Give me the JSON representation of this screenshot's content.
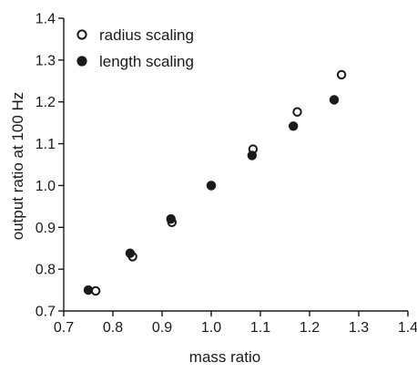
{
  "chart_data": {
    "type": "scatter",
    "xlabel": "mass ratio",
    "ylabel": "output ratio at 100 Hz",
    "xlim": [
      0.7,
      1.4
    ],
    "ylim": [
      0.7,
      1.4
    ],
    "x_ticks": [
      "0.7",
      "0.8",
      "0.9",
      "1.0",
      "1.1",
      "1.2",
      "1.3",
      "1.4"
    ],
    "y_ticks": [
      "0.7",
      "0.8",
      "0.9",
      "1.0",
      "1.1",
      "1.2",
      "1.3",
      "1.4"
    ],
    "grid": false,
    "legend_position": "top-left",
    "series": [
      {
        "name": "radius scaling",
        "marker": "open-circle",
        "color": "#1a1a1a",
        "x": [
          0.765,
          0.84,
          0.92,
          1.0,
          1.085,
          1.175,
          1.265
        ],
        "y": [
          0.748,
          0.83,
          0.912,
          1.0,
          1.087,
          1.176,
          1.265
        ]
      },
      {
        "name": "length scaling",
        "marker": "filled-circle",
        "color": "#1a1a1a",
        "x": [
          0.75,
          0.835,
          0.918,
          1.0,
          1.083,
          1.167,
          1.25
        ],
        "y": [
          0.75,
          0.838,
          0.92,
          1.0,
          1.072,
          1.142,
          1.205
        ]
      }
    ]
  }
}
